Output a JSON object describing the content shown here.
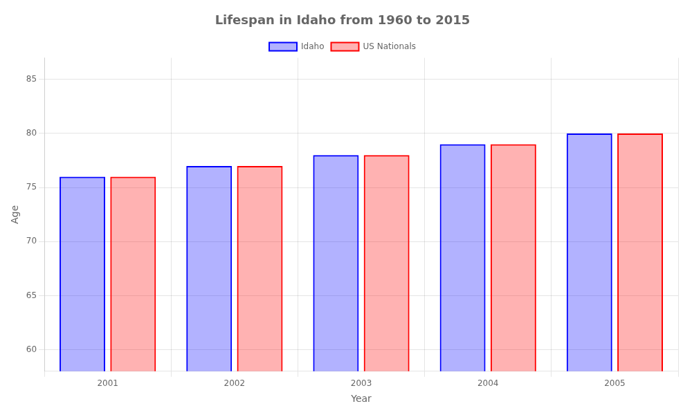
{
  "chart_data": {
    "type": "bar",
    "title": "Lifespan in Idaho from 1960 to 2015",
    "x_label": "Year",
    "y_label": "Age",
    "categories": [
      "2001",
      "2002",
      "2003",
      "2004",
      "2005"
    ],
    "series": [
      {
        "name": "Idaho",
        "color": "#0000ff",
        "values": [
          76,
          77,
          78,
          79,
          80
        ]
      },
      {
        "name": "US Nationals",
        "color": "#ff0000",
        "values": [
          76,
          77,
          78,
          79,
          80
        ]
      }
    ],
    "ylim": [
      58,
      87
    ],
    "yticks": [
      60,
      65,
      70,
      75,
      80,
      85
    ],
    "grid": true,
    "legend": "top"
  }
}
